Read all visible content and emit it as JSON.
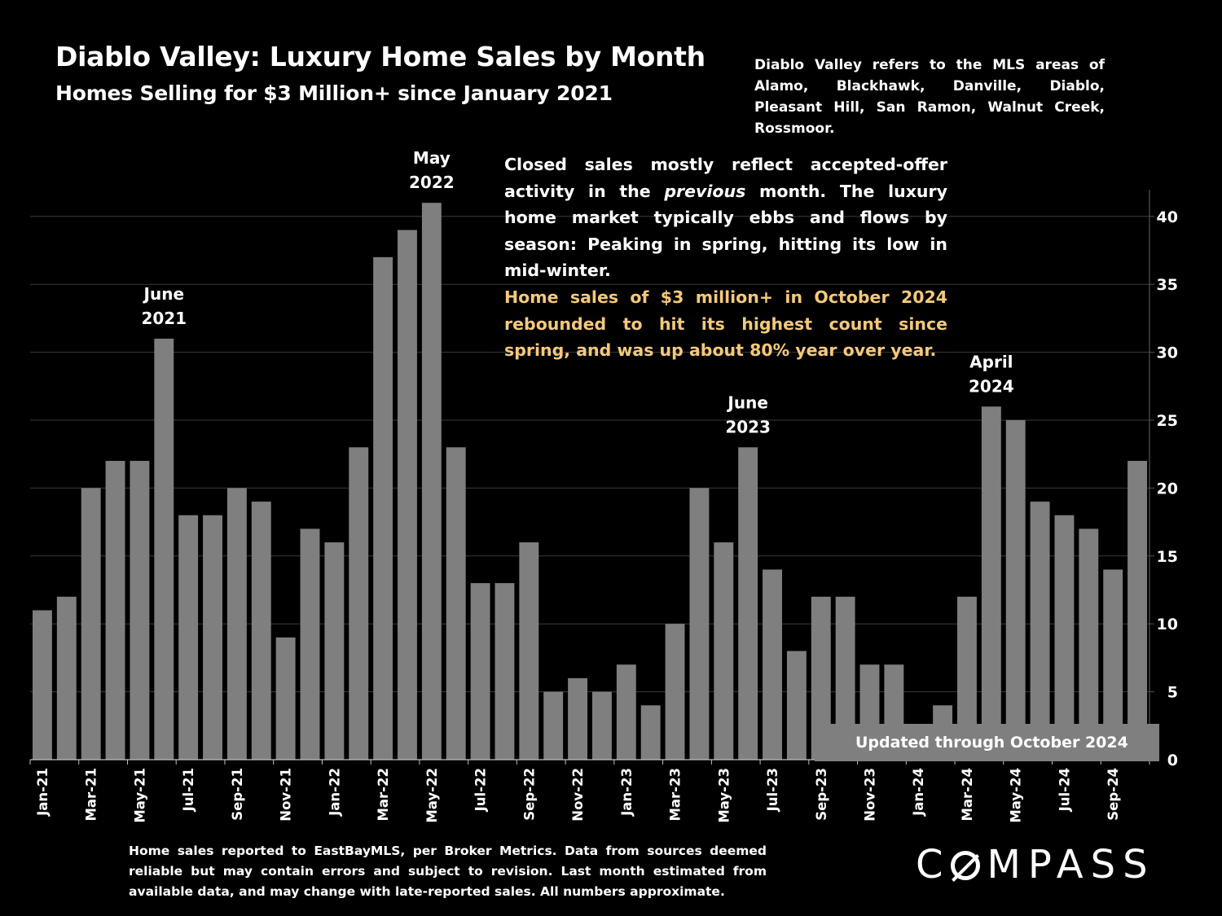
{
  "header": {
    "title": "Diablo Valley:  Luxury Home Sales by Month",
    "subtitle": "Homes Selling for $3 Million+ since January 2021",
    "area_note": "Diablo Valley refers to the MLS areas of Alamo, Blackhawk, Danville, Diablo, Pleasant Hill, San Ramon, Walnut Creek, Rossmoor."
  },
  "commentary": {
    "part1": "Closed sales mostly reflect accepted-offer activity in the ",
    "italic": "previous",
    "part2": " month. The luxury home market typically ebbs and flows by season: Peaking in spring, hitting its low in mid-winter.",
    "highlight": "Home sales of $3 million+ in October 2024 rebounded to hit its highest count since spring, and was up about 80% year over year."
  },
  "updated_note": "Updated through October 2024",
  "footer": {
    "source": "Home sales reported to EastBayMLS, per Broker Metrics. Data from sources deemed reliable but may contain errors and subject to revision.  Last month estimated from available data, and may change with late-reported sales. All numbers approximate.",
    "logo": "COMPASS"
  },
  "colors": {
    "bar": "#7f7f7f",
    "background": "#000000",
    "highlight": "#f5c97a",
    "grid": "#3a3a3a"
  },
  "chart_data": {
    "type": "bar",
    "title": "Diablo Valley:  Luxury Home Sales by Month",
    "categories": [
      "Jan-21",
      "Feb-21",
      "Mar-21",
      "Apr-21",
      "May-21",
      "Jun-21",
      "Jul-21",
      "Aug-21",
      "Sep-21",
      "Oct-21",
      "Nov-21",
      "Dec-21",
      "Jan-22",
      "Feb-22",
      "Mar-22",
      "Apr-22",
      "May-22",
      "Jun-22",
      "Jul-22",
      "Aug-22",
      "Sep-22",
      "Oct-22",
      "Nov-22",
      "Dec-22",
      "Jan-23",
      "Feb-23",
      "Mar-23",
      "Apr-23",
      "May-23",
      "Jun-23",
      "Jul-23",
      "Aug-23",
      "Sep-23",
      "Oct-23",
      "Nov-23",
      "Dec-23",
      "Jan-24",
      "Feb-24",
      "Mar-24",
      "Apr-24",
      "May-24",
      "Jun-24",
      "Jul-24",
      "Aug-24",
      "Sep-24",
      "Oct-24"
    ],
    "x_tick_labels": [
      "Jan-21",
      "Mar-21",
      "May-21",
      "Jul-21",
      "Sep-21",
      "Nov-21",
      "Jan-22",
      "Mar-22",
      "May-22",
      "Jul-22",
      "Sep-22",
      "Nov-22",
      "Jan-23",
      "Mar-23",
      "May-23",
      "Jul-23",
      "Sep-23",
      "Nov-23",
      "Jan-24",
      "Mar-24",
      "May-24",
      "Jul-24",
      "Sep-24"
    ],
    "values": [
      11,
      12,
      20,
      22,
      22,
      31,
      18,
      18,
      20,
      19,
      9,
      17,
      16,
      23,
      37,
      39,
      41,
      23,
      13,
      13,
      16,
      5,
      6,
      5,
      7,
      4,
      10,
      20,
      16,
      23,
      14,
      8,
      12,
      12,
      7,
      7,
      2,
      4,
      12,
      26,
      25,
      19,
      18,
      17,
      14,
      22
    ],
    "ylim": [
      0,
      42
    ],
    "y_ticks": [
      0,
      5,
      10,
      15,
      20,
      25,
      30,
      35,
      40
    ],
    "y_axis_side": "right",
    "grid": true,
    "xlabel": "",
    "ylabel": "",
    "annotations": [
      {
        "index": 5,
        "lines": [
          "June",
          "2021"
        ]
      },
      {
        "index": 16,
        "lines": [
          "May",
          "2022"
        ]
      },
      {
        "index": 29,
        "lines": [
          "June",
          "2023"
        ]
      },
      {
        "index": 39,
        "lines": [
          "April",
          "2024"
        ]
      }
    ]
  }
}
